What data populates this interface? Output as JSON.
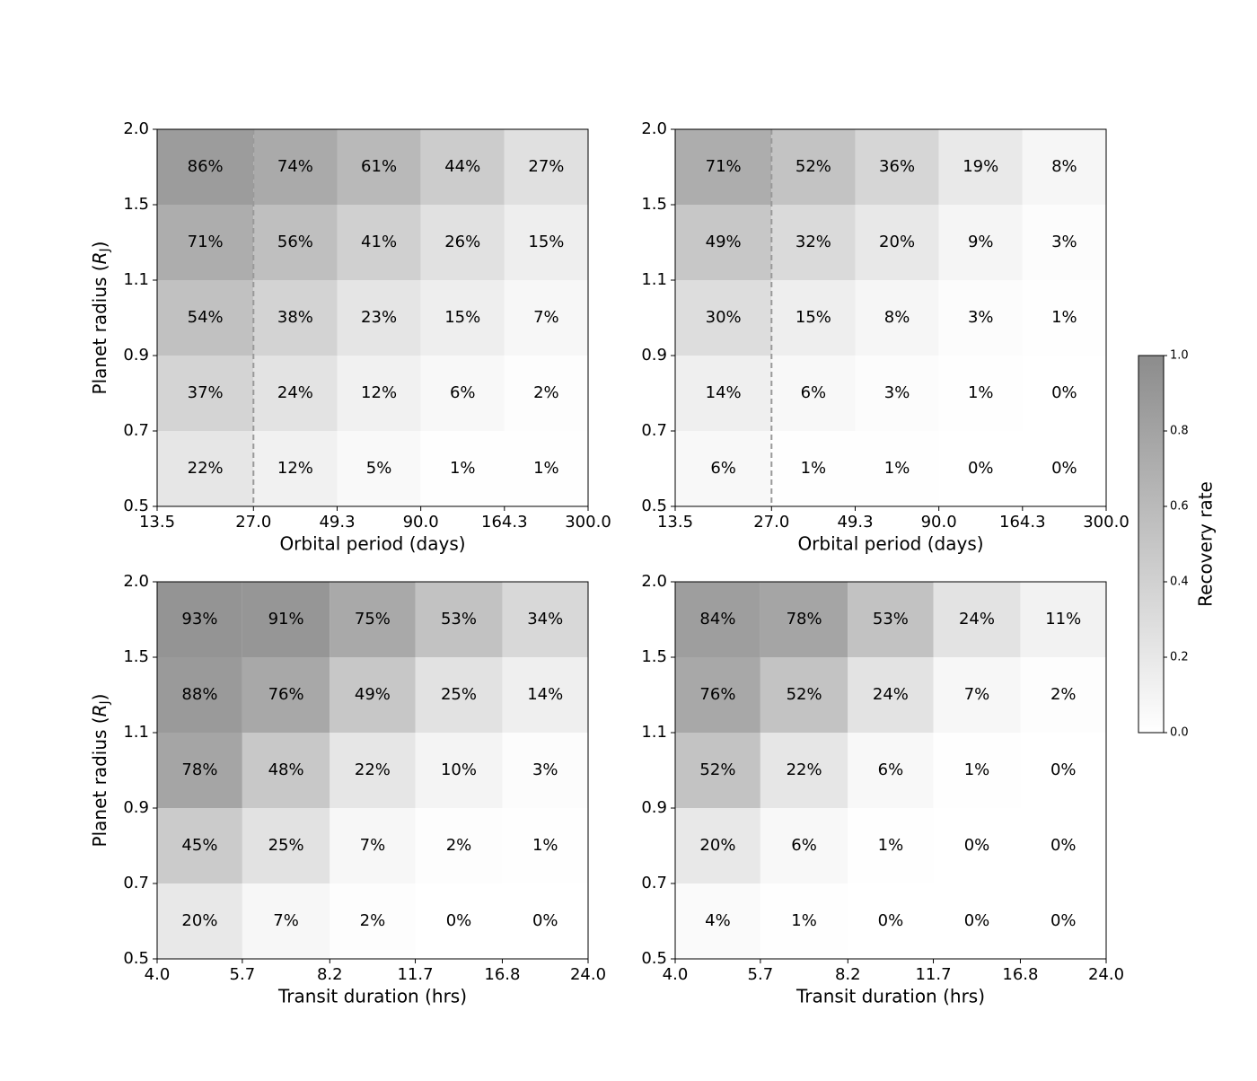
{
  "chart_data": [
    {
      "type": "heatmap",
      "xlabel": "Orbital period (days)",
      "ylabel": [
        "Planet radius (",
        "R",
        "J",
        ")"
      ],
      "xscale": "log",
      "xlim": [
        13.5,
        300
      ],
      "xticks": [
        13.5,
        {
          "value": 27,
          "label": "27.0"
        },
        49.3,
        {
          "value": 90,
          "label": "90.0"
        },
        164.3,
        {
          "value": 300,
          "label": "300.0"
        }
      ],
      "yticks": [
        0.5,
        0.7,
        0.9,
        1.1,
        1.5,
        {
          "value": 2,
          "label": "2.0"
        }
      ],
      "vline": 27,
      "values": [
        [
          0.22,
          0.12,
          0.05,
          0.01,
          0.01
        ],
        [
          0.37,
          0.24,
          0.12,
          0.06,
          0.02
        ],
        [
          0.54,
          0.38,
          0.23,
          0.15,
          0.07
        ],
        [
          0.71,
          0.56,
          0.41,
          0.26,
          0.15
        ],
        [
          0.86,
          0.74,
          0.61,
          0.44,
          0.27
        ]
      ],
      "value_labels": [
        [
          "22%",
          "12%",
          "5%",
          "1%",
          "1%"
        ],
        [
          "37%",
          "24%",
          "12%",
          "6%",
          "2%"
        ],
        [
          "54%",
          "38%",
          "23%",
          "15%",
          "7%"
        ],
        [
          "71%",
          "56%",
          "41%",
          "26%",
          "15%"
        ],
        [
          "86%",
          "74%",
          "61%",
          "44%",
          "27%"
        ]
      ]
    },
    {
      "type": "heatmap",
      "xlabel": "Orbital period (days)",
      "xscale": "log",
      "xlim": [
        13.5,
        300
      ],
      "xticks": [
        13.5,
        {
          "value": 27,
          "label": "27.0"
        },
        49.3,
        {
          "value": 90,
          "label": "90.0"
        },
        164.3,
        {
          "value": 300,
          "label": "300.0"
        }
      ],
      "yticks": [
        0.5,
        0.7,
        0.9,
        1.1,
        1.5,
        {
          "value": 2,
          "label": "2.0"
        }
      ],
      "vline": 27,
      "values": [
        [
          0.06,
          0.01,
          0.01,
          0,
          0
        ],
        [
          0.14,
          0.06,
          0.03,
          0.01,
          0
        ],
        [
          0.3,
          0.15,
          0.08,
          0.03,
          0.01
        ],
        [
          0.49,
          0.32,
          0.2,
          0.09,
          0.03
        ],
        [
          0.71,
          0.52,
          0.36,
          0.19,
          0.08
        ]
      ],
      "value_labels": [
        [
          "6%",
          "1%",
          "1%",
          "0%",
          "0%"
        ],
        [
          "14%",
          "6%",
          "3%",
          "1%",
          "0%"
        ],
        [
          "30%",
          "15%",
          "8%",
          "3%",
          "1%"
        ],
        [
          "49%",
          "32%",
          "20%",
          "9%",
          "3%"
        ],
        [
          "71%",
          "52%",
          "36%",
          "19%",
          "8%"
        ]
      ]
    },
    {
      "type": "heatmap",
      "xlabel": "Transit duration (hrs)",
      "ylabel": [
        "Planet radius (",
        "R",
        "J",
        ")"
      ],
      "xscale": "log",
      "xlim": [
        4,
        24
      ],
      "xticks": [
        {
          "value": 4,
          "label": "4.0"
        },
        5.7,
        8.2,
        11.7,
        16.8,
        {
          "value": 24,
          "label": "24.0"
        }
      ],
      "yticks": [
        0.5,
        0.7,
        0.9,
        1.1,
        1.5,
        {
          "value": 2,
          "label": "2.0"
        }
      ],
      "values": [
        [
          0.2,
          0.07,
          0.02,
          0,
          0
        ],
        [
          0.45,
          0.25,
          0.07,
          0.02,
          0.01
        ],
        [
          0.78,
          0.48,
          0.22,
          0.1,
          0.03
        ],
        [
          0.88,
          0.76,
          0.49,
          0.25,
          0.14
        ],
        [
          0.93,
          0.91,
          0.75,
          0.53,
          0.34
        ]
      ],
      "value_labels": [
        [
          "20%",
          "7%",
          "2%",
          "0%",
          "0%"
        ],
        [
          "45%",
          "25%",
          "7%",
          "2%",
          "1%"
        ],
        [
          "78%",
          "48%",
          "22%",
          "10%",
          "3%"
        ],
        [
          "88%",
          "76%",
          "49%",
          "25%",
          "14%"
        ],
        [
          "93%",
          "91%",
          "75%",
          "53%",
          "34%"
        ]
      ]
    },
    {
      "type": "heatmap",
      "xlabel": "Transit duration (hrs)",
      "xscale": "log",
      "xlim": [
        4,
        24
      ],
      "xticks": [
        {
          "value": 4,
          "label": "4.0"
        },
        5.7,
        8.2,
        11.7,
        16.8,
        {
          "value": 24,
          "label": "24.0"
        }
      ],
      "yticks": [
        0.5,
        0.7,
        0.9,
        1.1,
        1.5,
        {
          "value": 2,
          "label": "2.0"
        }
      ],
      "values": [
        [
          0.04,
          0.01,
          0,
          0,
          0
        ],
        [
          0.2,
          0.06,
          0.01,
          0,
          0
        ],
        [
          0.52,
          0.22,
          0.06,
          0.01,
          0
        ],
        [
          0.76,
          0.52,
          0.24,
          0.07,
          0.02
        ],
        [
          0.84,
          0.78,
          0.53,
          0.24,
          0.11
        ]
      ],
      "value_labels": [
        [
          "4%",
          "1%",
          "0%",
          "0%",
          "0%"
        ],
        [
          "20%",
          "6%",
          "1%",
          "0%",
          "0%"
        ],
        [
          "52%",
          "22%",
          "6%",
          "1%",
          "0%"
        ],
        [
          "76%",
          "52%",
          "24%",
          "7%",
          "2%"
        ],
        [
          "84%",
          "78%",
          "53%",
          "24%",
          "11%"
        ]
      ]
    },
    {
      "type": "colorbar",
      "label": "Recovery rate",
      "lim": [
        0,
        1
      ],
      "cmap": [
        "#ffffff",
        "#8c8c8c"
      ],
      "ticks": [
        {
          "value": 0,
          "label": "0.0"
        },
        0.2,
        0.4,
        0.6,
        0.8,
        {
          "value": 1,
          "label": "1.0"
        }
      ]
    }
  ]
}
